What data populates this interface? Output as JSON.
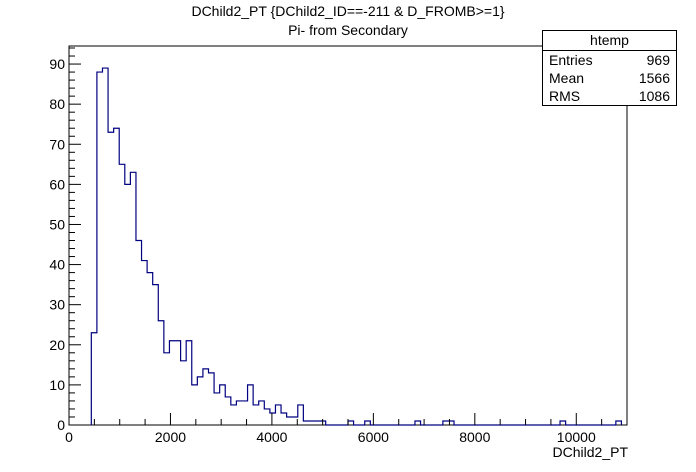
{
  "chart_data": {
    "type": "histogram",
    "title": "DChild2_PT {DChild2_ID==-211 & D_FROMB>=1}",
    "subtitle": "Pi- from Secondary",
    "xlabel": "DChild2_PT",
    "ylabel": "",
    "xlim": [
      0,
      11000
    ],
    "ylim": [
      0,
      94.5
    ],
    "x_ticks": [
      0,
      2000,
      4000,
      6000,
      8000,
      10000
    ],
    "y_ticks": [
      0,
      10,
      20,
      30,
      40,
      50,
      60,
      70,
      80,
      90
    ],
    "bin_width": 110,
    "bin_start": 440,
    "values": [
      23,
      88,
      89,
      73,
      74,
      65,
      60,
      63,
      46,
      41,
      38,
      35,
      26,
      18,
      21,
      21,
      16,
      21,
      10,
      12,
      14,
      13,
      8,
      10,
      7,
      5,
      6,
      6,
      10,
      5,
      6,
      4,
      3,
      5,
      3,
      2,
      2,
      5,
      1,
      1,
      1,
      1,
      0,
      0,
      0,
      0,
      1,
      0,
      0,
      1,
      0,
      0,
      0,
      0,
      0,
      0,
      0,
      0,
      1,
      0,
      0,
      0,
      0,
      1,
      1,
      0,
      0,
      0,
      0,
      0,
      0,
      0,
      0,
      0,
      0,
      0,
      0,
      0,
      0,
      0,
      0,
      0,
      0,
      0,
      1,
      0,
      0,
      0,
      0,
      0,
      0,
      0,
      0,
      0,
      1
    ],
    "grid": false,
    "line_color": "#000080",
    "stats": {
      "name": "htemp",
      "rows": [
        {
          "label": "Entries",
          "value": "969"
        },
        {
          "label": "Mean",
          "value": "1566"
        },
        {
          "label": "RMS",
          "value": "1086"
        }
      ]
    }
  }
}
